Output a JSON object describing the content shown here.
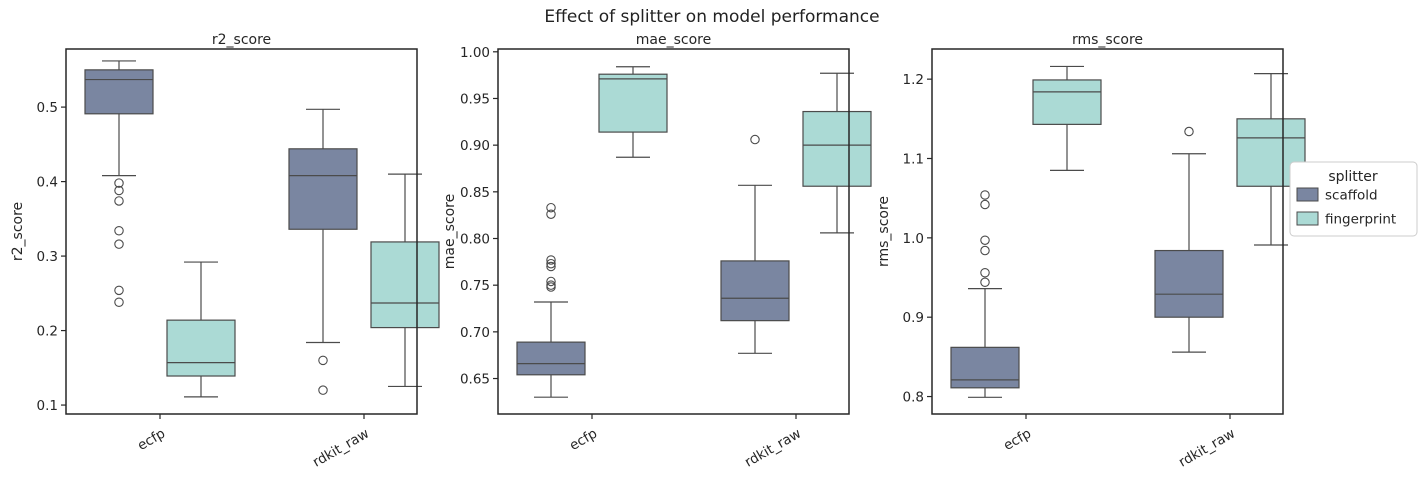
{
  "figure": {
    "suptitle": "Effect of splitter on model performance"
  },
  "legend": {
    "title": "splitter",
    "items": [
      {
        "label": "scaffold",
        "color": "#7a86a1"
      },
      {
        "label": "fingerprint",
        "color": "#abdad5"
      }
    ]
  },
  "chart_data": [
    {
      "type": "box",
      "title": "r2_score",
      "xlabel": "",
      "ylabel": "r2_score",
      "categories": [
        "ecfp",
        "rdkit_raw"
      ],
      "ylim": [
        0.088,
        0.578
      ],
      "yticks": [
        0.1,
        0.2,
        0.3,
        0.4,
        0.5
      ],
      "ytick_labels": [
        "0.1",
        "0.2",
        "0.3",
        "0.4",
        "0.5"
      ],
      "legend_position": "right, outside",
      "series": [
        {
          "name": "scaffold",
          "color": "#7a86a1",
          "boxes": [
            {
              "q1": 0.491,
              "median": 0.537,
              "q3": 0.55,
              "whisker_low": 0.408,
              "whisker_high": 0.562,
              "outliers": [
                0.398,
                0.388,
                0.374,
                0.334,
                0.316,
                0.254,
                0.238
              ]
            },
            {
              "q1": 0.336,
              "median": 0.408,
              "q3": 0.444,
              "whisker_low": 0.184,
              "whisker_high": 0.497,
              "outliers": [
                0.16,
                0.12
              ]
            }
          ]
        },
        {
          "name": "fingerprint",
          "color": "#abdad5",
          "boxes": [
            {
              "q1": 0.139,
              "median": 0.157,
              "q3": 0.214,
              "whisker_low": 0.111,
              "whisker_high": 0.292,
              "outliers": []
            },
            {
              "q1": 0.204,
              "median": 0.237,
              "q3": 0.319,
              "whisker_low": 0.125,
              "whisker_high": 0.41,
              "outliers": []
            }
          ]
        }
      ]
    },
    {
      "type": "box",
      "title": "mae_score",
      "xlabel": "",
      "ylabel": "mae_score",
      "categories": [
        "ecfp",
        "rdkit_raw"
      ],
      "ylim": [
        0.612,
        1.003
      ],
      "yticks": [
        0.65,
        0.7,
        0.75,
        0.8,
        0.85,
        0.9,
        0.95,
        1.0
      ],
      "ytick_labels": [
        "0.65",
        "0.70",
        "0.75",
        "0.80",
        "0.85",
        "0.90",
        "0.95",
        "1.00"
      ],
      "series": [
        {
          "name": "scaffold",
          "color": "#7a86a1",
          "boxes": [
            {
              "q1": 0.654,
              "median": 0.666,
              "q3": 0.689,
              "whisker_low": 0.63,
              "whisker_high": 0.732,
              "outliers": [
                0.833,
                0.826,
                0.777,
                0.773,
                0.77,
                0.754,
                0.75,
                0.748
              ]
            },
            {
              "q1": 0.712,
              "median": 0.736,
              "q3": 0.776,
              "whisker_low": 0.677,
              "whisker_high": 0.857,
              "outliers": [
                0.906
              ]
            }
          ]
        },
        {
          "name": "fingerprint",
          "color": "#abdad5",
          "boxes": [
            {
              "q1": 0.914,
              "median": 0.971,
              "q3": 0.976,
              "whisker_low": 0.887,
              "whisker_high": 0.984,
              "outliers": []
            },
            {
              "q1": 0.856,
              "median": 0.9,
              "q3": 0.936,
              "whisker_low": 0.806,
              "whisker_high": 0.977,
              "outliers": []
            }
          ]
        }
      ]
    },
    {
      "type": "box",
      "title": "rms_score",
      "xlabel": "",
      "ylabel": "rms_score",
      "categories": [
        "ecfp",
        "rdkit_raw"
      ],
      "ylim": [
        0.778,
        1.238
      ],
      "yticks": [
        0.8,
        0.9,
        1.0,
        1.1,
        1.2
      ],
      "ytick_labels": [
        "0.8",
        "0.9",
        "1.0",
        "1.1",
        "1.2"
      ],
      "series": [
        {
          "name": "scaffold",
          "color": "#7a86a1",
          "boxes": [
            {
              "q1": 0.811,
              "median": 0.821,
              "q3": 0.862,
              "whisker_low": 0.799,
              "whisker_high": 0.936,
              "outliers": [
                1.054,
                1.042,
                0.997,
                0.984,
                0.956,
                0.944
              ]
            },
            {
              "q1": 0.9,
              "median": 0.929,
              "q3": 0.984,
              "whisker_low": 0.856,
              "whisker_high": 1.106,
              "outliers": [
                1.134
              ]
            }
          ]
        },
        {
          "name": "fingerprint",
          "color": "#abdad5",
          "boxes": [
            {
              "q1": 1.143,
              "median": 1.184,
              "q3": 1.199,
              "whisker_low": 1.085,
              "whisker_high": 1.216,
              "outliers": []
            },
            {
              "q1": 1.065,
              "median": 1.126,
              "q3": 1.15,
              "whisker_low": 0.991,
              "whisker_high": 1.207,
              "outliers": []
            }
          ]
        }
      ]
    }
  ]
}
